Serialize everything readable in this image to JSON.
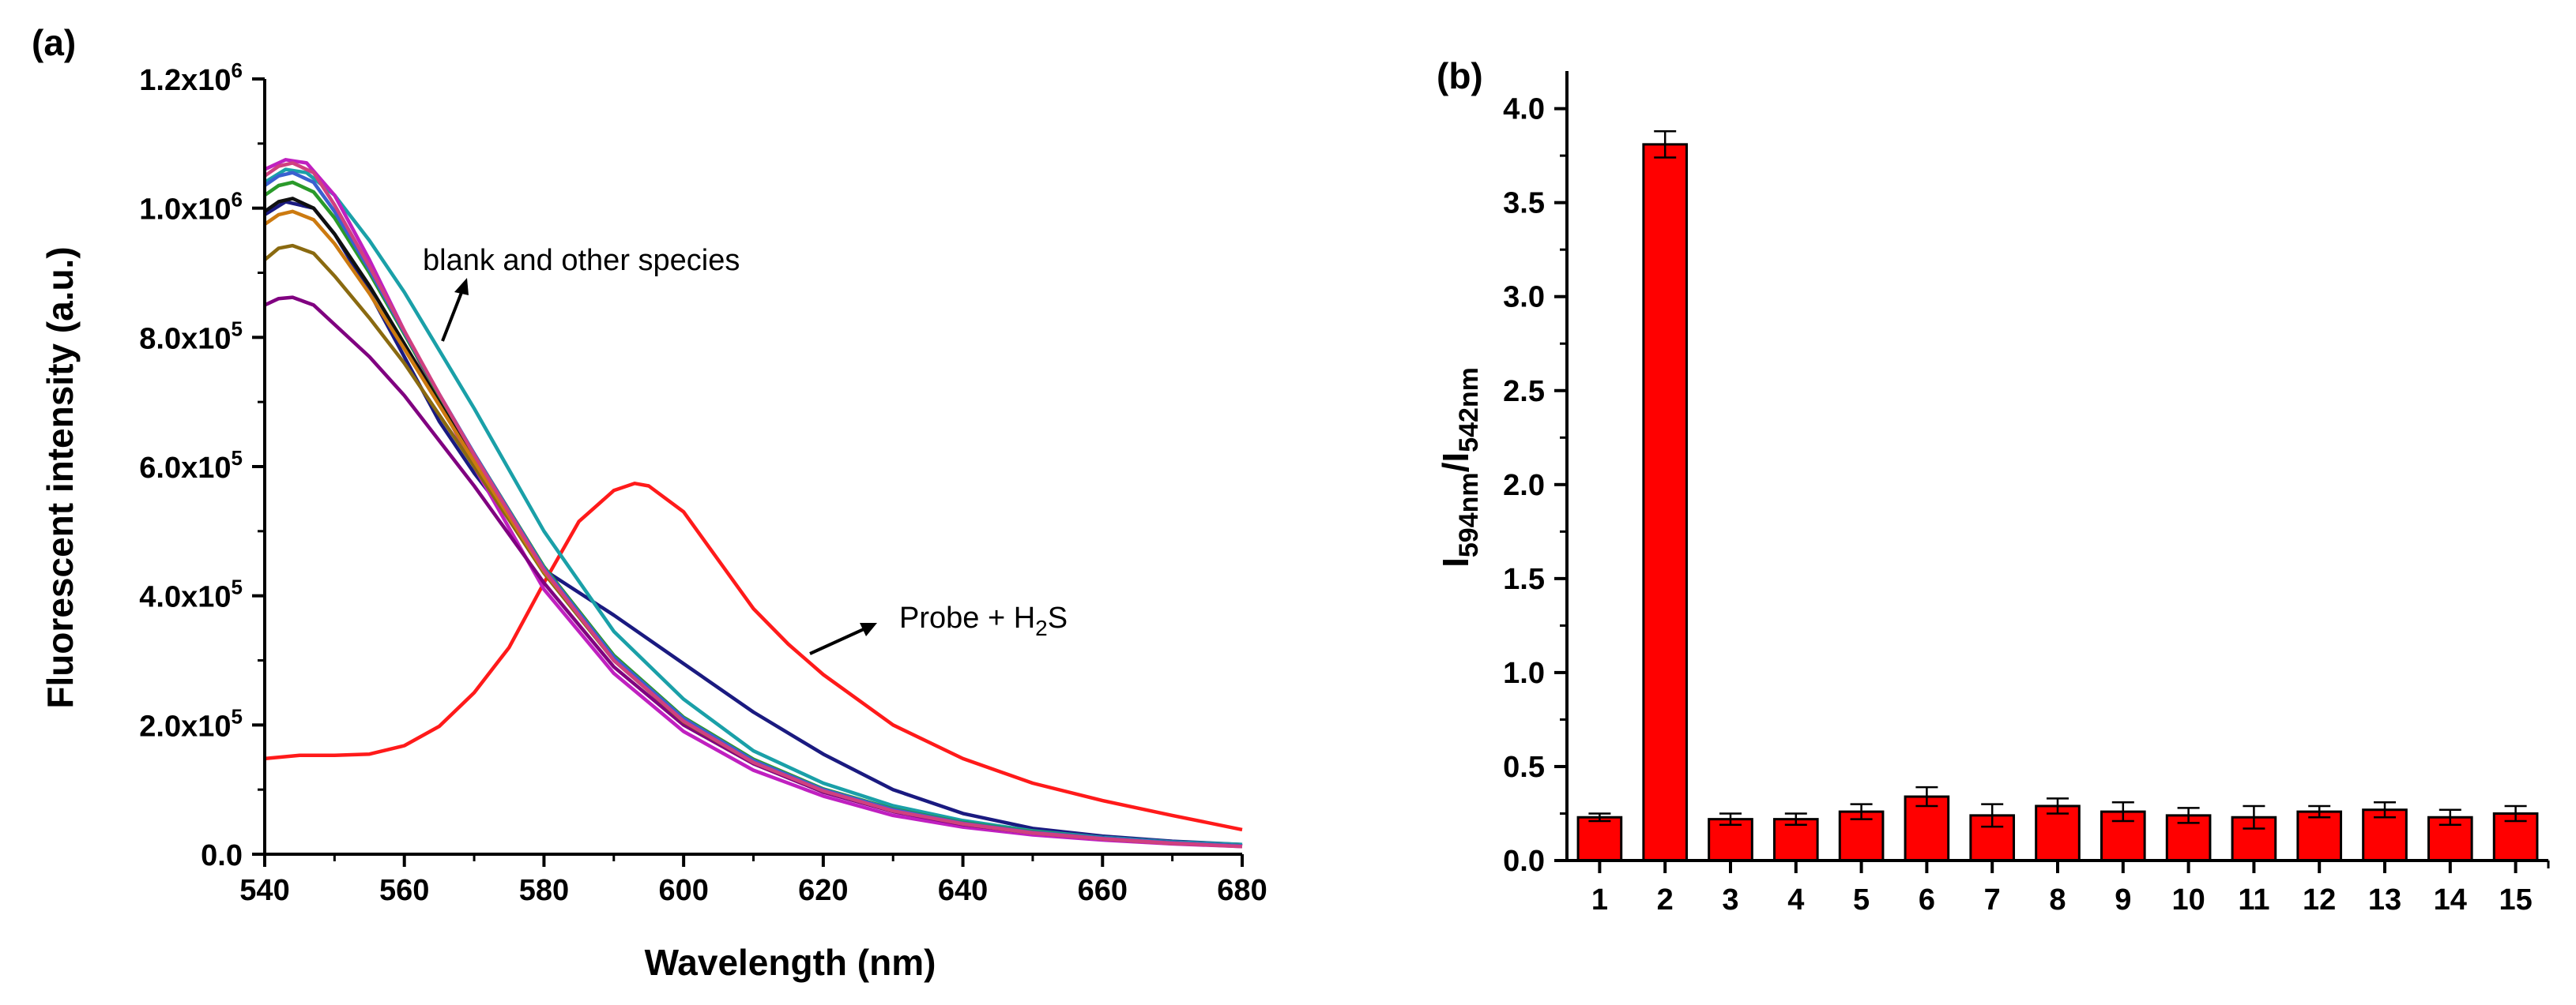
{
  "chart_data": [
    {
      "panel": "(a)",
      "type": "line",
      "xlabel": "Wavelength (nm)",
      "ylabel": "Fluorescent intensity (a.u.)",
      "xlim": [
        540,
        680
      ],
      "ylim": [
        0,
        1200000
      ],
      "xticks": [
        540,
        560,
        580,
        600,
        620,
        640,
        660,
        680
      ],
      "xtick_labels": [
        "540",
        "560",
        "580",
        "600",
        "620",
        "640",
        "660",
        "680"
      ],
      "yticks": [
        0,
        200000,
        400000,
        600000,
        800000,
        1000000,
        1200000
      ],
      "ytick_labels": [
        {
          "mant": "0.0",
          "exp": ""
        },
        {
          "mant": "2.0x10",
          "exp": "5"
        },
        {
          "mant": "4.0x10",
          "exp": "5"
        },
        {
          "mant": "6.0x10",
          "exp": "5"
        },
        {
          "mant": "8.0x10",
          "exp": "5"
        },
        {
          "mant": "1.0x10",
          "exp": "6"
        },
        {
          "mant": "1.2x10",
          "exp": "6"
        }
      ],
      "annotations": {
        "blank": "blank and other species",
        "probe_prefix": "Probe + H",
        "probe_sub": "2",
        "probe_suffix": "S"
      },
      "series": [
        {
          "name": "Probe + H2S",
          "color": "#ff1a1a",
          "x": [
            540,
            545,
            550,
            555,
            560,
            565,
            570,
            575,
            580,
            585,
            590,
            593,
            595,
            600,
            605,
            610,
            615,
            620,
            630,
            640,
            650,
            660,
            670,
            680
          ],
          "y": [
            148000,
            153000,
            153000,
            155000,
            168000,
            198000,
            250000,
            320000,
            420000,
            515000,
            563000,
            574000,
            570000,
            530000,
            455000,
            380000,
            325000,
            278000,
            200000,
            148000,
            110000,
            83000,
            60000,
            38000
          ]
        },
        {
          "name": "species",
          "color": "#1a1a80",
          "x": [
            540,
            543,
            547,
            550,
            555,
            560,
            565,
            570,
            575,
            580,
            590,
            600,
            610,
            620,
            630,
            640,
            650,
            660,
            670,
            680
          ],
          "y": [
            990000,
            1010000,
            1000000,
            960000,
            870000,
            770000,
            670000,
            590000,
            520000,
            440000,
            370000,
            295000,
            220000,
            155000,
            100000,
            63000,
            40000,
            28000,
            20000,
            15000
          ]
        },
        {
          "name": "species",
          "color": "#1aa0a8",
          "x": [
            540,
            543,
            546,
            550,
            555,
            560,
            565,
            570,
            580,
            590,
            600,
            610,
            620,
            630,
            640,
            650,
            660,
            670,
            680
          ],
          "y": [
            1040000,
            1060000,
            1055000,
            1020000,
            950000,
            870000,
            780000,
            690000,
            500000,
            345000,
            240000,
            160000,
            110000,
            75000,
            52000,
            36000,
            26000,
            19000,
            15000
          ]
        },
        {
          "name": "species",
          "color": "#c020c0",
          "x": [
            540,
            543,
            546,
            550,
            555,
            560,
            565,
            570,
            580,
            590,
            600,
            610,
            620,
            630,
            640,
            650,
            660,
            670,
            680
          ],
          "y": [
            1060000,
            1075000,
            1070000,
            1020000,
            920000,
            810000,
            700000,
            600000,
            410000,
            280000,
            190000,
            130000,
            90000,
            60000,
            42000,
            30000,
            22000,
            16000,
            12000
          ]
        },
        {
          "name": "species",
          "color": "#800080",
          "x": [
            540,
            542,
            544,
            547,
            550,
            555,
            560,
            565,
            570,
            580,
            590,
            600,
            610,
            620,
            630,
            640,
            650,
            660,
            670,
            680
          ],
          "y": [
            850000,
            860000,
            862000,
            850000,
            820000,
            770000,
            710000,
            640000,
            570000,
            420000,
            290000,
            200000,
            140000,
            96000,
            66000,
            46000,
            33000,
            24000,
            17000,
            13000
          ]
        },
        {
          "name": "species",
          "color": "#8a6a10",
          "x": [
            540,
            542,
            544,
            547,
            550,
            555,
            560,
            565,
            570,
            580,
            590,
            600,
            610,
            620,
            630,
            640,
            650,
            660,
            670,
            680
          ],
          "y": [
            920000,
            938000,
            942000,
            930000,
            895000,
            830000,
            760000,
            680000,
            600000,
            435000,
            300000,
            205000,
            142000,
            98000,
            68000,
            47000,
            33000,
            24000,
            17000,
            13000
          ]
        },
        {
          "name": "species",
          "color": "#101010",
          "x": [
            540,
            542,
            544,
            547,
            550,
            555,
            560,
            565,
            570,
            580,
            590,
            600,
            610,
            620,
            630,
            640,
            650,
            660,
            670,
            680
          ],
          "y": [
            995000,
            1010000,
            1015000,
            1000000,
            960000,
            880000,
            790000,
            700000,
            610000,
            440000,
            305000,
            210000,
            145000,
            100000,
            69000,
            48000,
            34000,
            25000,
            18000,
            13000
          ]
        },
        {
          "name": "species",
          "color": "#2a9a2a",
          "x": [
            540,
            542,
            544,
            547,
            550,
            555,
            560,
            565,
            570,
            580,
            590,
            600,
            610,
            620,
            630,
            640,
            650,
            660,
            670,
            680
          ],
          "y": [
            1020000,
            1035000,
            1040000,
            1025000,
            985000,
            900000,
            805000,
            710000,
            620000,
            445000,
            308000,
            212000,
            147000,
            101000,
            70000,
            49000,
            35000,
            25000,
            18000,
            13000
          ]
        },
        {
          "name": "species",
          "color": "#cc7a10",
          "x": [
            540,
            542,
            544,
            547,
            550,
            555,
            560,
            565,
            570,
            580,
            590,
            600,
            610,
            620,
            630,
            640,
            650,
            660,
            670,
            680
          ],
          "y": [
            975000,
            990000,
            995000,
            982000,
            945000,
            868000,
            782000,
            695000,
            608000,
            438000,
            303000,
            208000,
            144000,
            99000,
            68000,
            47000,
            33000,
            24000,
            17000,
            13000
          ]
        },
        {
          "name": "species",
          "color": "#3a60d0",
          "x": [
            540,
            542,
            544,
            547,
            550,
            555,
            560,
            565,
            570,
            580,
            590,
            600,
            610,
            620,
            630,
            640,
            650,
            660,
            670,
            680
          ],
          "y": [
            1035000,
            1050000,
            1055000,
            1040000,
            995000,
            905000,
            808000,
            712000,
            620000,
            443000,
            305000,
            210000,
            145000,
            100000,
            69000,
            48000,
            34000,
            25000,
            18000,
            13000
          ]
        },
        {
          "name": "species",
          "color": "#d04080",
          "x": [
            540,
            542,
            544,
            547,
            550,
            555,
            560,
            565,
            570,
            580,
            590,
            600,
            610,
            620,
            630,
            640,
            650,
            660,
            670,
            680
          ],
          "y": [
            1050000,
            1065000,
            1070000,
            1055000,
            1005000,
            910000,
            810000,
            712000,
            618000,
            440000,
            300000,
            206000,
            142000,
            98000,
            67000,
            47000,
            33000,
            24000,
            17000,
            12000
          ]
        }
      ]
    },
    {
      "panel": "(b)",
      "type": "bar",
      "ylabel_main": "I",
      "ylabel_sub1": "594nm",
      "ylabel_sep": "/I",
      "ylabel_sub2": "542nm",
      "ylim": [
        0,
        4.2
      ],
      "yticks": [
        0.0,
        0.5,
        1.0,
        1.5,
        2.0,
        2.5,
        3.0,
        3.5,
        4.0
      ],
      "ytick_labels": [
        "0.0",
        "0.5",
        "1.0",
        "1.5",
        "2.0",
        "2.5",
        "3.0",
        "3.5",
        "4.0"
      ],
      "categories": [
        "1",
        "2",
        "3",
        "4",
        "5",
        "6",
        "7",
        "8",
        "9",
        "10",
        "11",
        "12",
        "13",
        "14",
        "15"
      ],
      "values": [
        0.23,
        3.81,
        0.22,
        0.22,
        0.26,
        0.34,
        0.24,
        0.29,
        0.26,
        0.24,
        0.23,
        0.26,
        0.27,
        0.23,
        0.25
      ],
      "errors": [
        0.02,
        0.07,
        0.03,
        0.03,
        0.04,
        0.05,
        0.06,
        0.04,
        0.05,
        0.04,
        0.06,
        0.03,
        0.04,
        0.04,
        0.04
      ],
      "bar_color": "#ff0000"
    }
  ]
}
